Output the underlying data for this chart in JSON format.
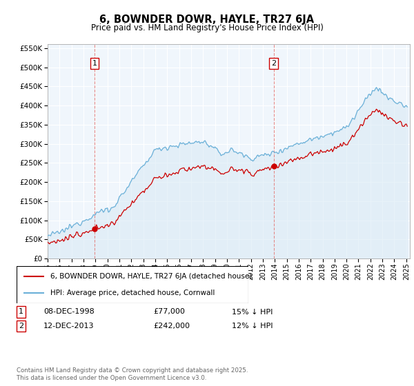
{
  "title": "6, BOWNDER DOWR, HAYLE, TR27 6JA",
  "subtitle": "Price paid vs. HM Land Registry's House Price Index (HPI)",
  "legend_line1": "6, BOWNDER DOWR, HAYLE, TR27 6JA (detached house)",
  "legend_line2": "HPI: Average price, detached house, Cornwall",
  "footer": "Contains HM Land Registry data © Crown copyright and database right 2025.\nThis data is licensed under the Open Government Licence v3.0.",
  "sale1_date": "08-DEC-1998",
  "sale1_price": "£77,000",
  "sale1_hpi": "15% ↓ HPI",
  "sale2_date": "12-DEC-2013",
  "sale2_price": "£242,000",
  "sale2_hpi": "12% ↓ HPI",
  "sale1_year": 1998.917,
  "sale1_value": 77000,
  "sale2_year": 2013.917,
  "sale2_value": 242000,
  "ylim_min": 0,
  "ylim_max": 560000,
  "xlim_min": 1995.0,
  "xlim_max": 2025.3,
  "hpi_color": "#6ab0d8",
  "hpi_fill": "#daeaf5",
  "sale_color": "#cc0000",
  "bg_color": "#f0f6fc"
}
